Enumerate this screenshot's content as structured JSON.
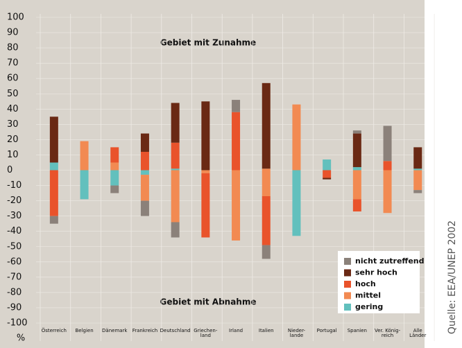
{
  "chart_data": {
    "type": "diverging-stacked-bar",
    "annotations": [
      "Gebiet mit Zunahme",
      "Gebiet mit Abnahme"
    ],
    "y_label": "%",
    "source": "Quelle: EEA/UNEP 2002",
    "categories": [
      "Österreich",
      "Belgien",
      "Dänemark",
      "Frankreich",
      "Deutschland",
      "Griechen-\nland",
      "Irland",
      "Italien",
      "Nieder-\nlande",
      "Portugal",
      "Spanien",
      "Ver. König-\nreich",
      "Alle\nLänder"
    ],
    "series": [
      {
        "name": "nicht zutreffend",
        "color": "#8b817a",
        "values": [
          0,
          0,
          0,
          0,
          0,
          0,
          8,
          0,
          0,
          0,
          2,
          23,
          0
        ],
        "values_negative": [
          -5,
          0,
          -5,
          -10,
          -10,
          0,
          0,
          -9,
          0,
          0,
          0,
          0,
          -2
        ]
      },
      {
        "name": "sehr hoch",
        "color": "#6a2914",
        "values": [
          30,
          0,
          0,
          12,
          26,
          45,
          0,
          56,
          0,
          0,
          22,
          0,
          14
        ],
        "values_negative": [
          0,
          0,
          0,
          0,
          0,
          0,
          0,
          0,
          0,
          -1,
          0,
          0,
          0
        ]
      },
      {
        "name": "hoch",
        "color": "#e9532b",
        "values": [
          0,
          0,
          10,
          12,
          17,
          0,
          38,
          0,
          0,
          0,
          0,
          6,
          0
        ],
        "values_negative": [
          -30,
          0,
          0,
          0,
          0,
          -42,
          0,
          -32,
          0,
          -5,
          -8,
          0,
          0
        ]
      },
      {
        "name": "mittel",
        "color": "#f28a52",
        "values": [
          0,
          19,
          5,
          0,
          0,
          0,
          0,
          1,
          43,
          0,
          0,
          0,
          0
        ],
        "values_negative": [
          0,
          0,
          0,
          -17,
          -34,
          -2,
          -46,
          -17,
          0,
          0,
          -19,
          -28,
          -13
        ]
      },
      {
        "name": "gering",
        "color": "#62c0bd",
        "values": [
          5,
          0,
          0,
          0,
          1,
          0,
          0,
          0,
          0,
          7,
          2,
          0,
          1
        ],
        "values_negative": [
          0,
          -19,
          -10,
          -3,
          0,
          0,
          0,
          0,
          -43,
          0,
          0,
          0,
          0
        ]
      }
    ],
    "ylim": [
      -100,
      100
    ],
    "yticks": [
      -100,
      -90,
      -80,
      -70,
      -60,
      -50,
      -40,
      -30,
      -20,
      -10,
      0,
      10,
      20,
      30,
      40,
      50,
      60,
      70,
      80,
      90,
      100
    ],
    "grid": true
  }
}
